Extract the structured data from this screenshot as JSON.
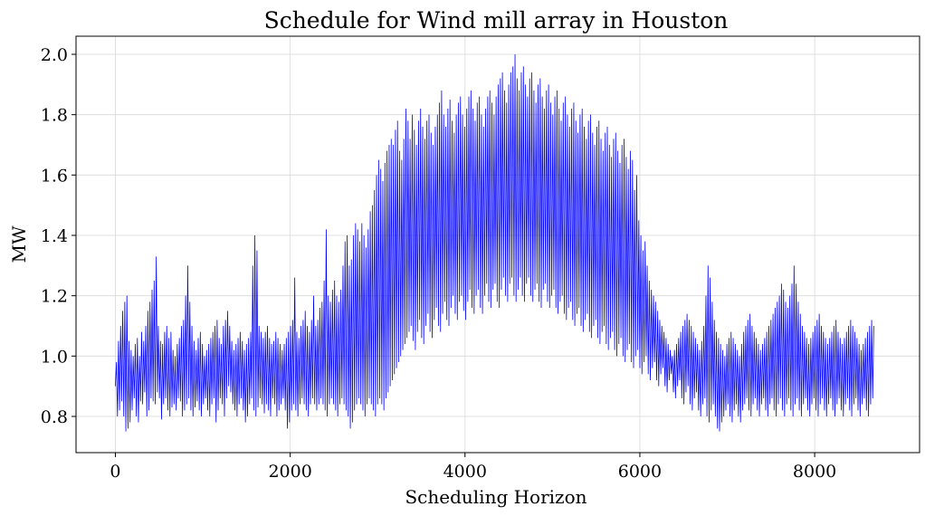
{
  "chart_data": {
    "type": "line",
    "title": "Schedule for Wind mill array in Houston",
    "xlabel": "Scheduling Horizon",
    "ylabel": "MW",
    "xlim": [
      -450,
      9200
    ],
    "ylim": [
      0.68,
      2.06
    ],
    "xticks": [
      0,
      2000,
      4000,
      6000,
      8000
    ],
    "xtick_labels": [
      "0",
      "2000",
      "4000",
      "6000",
      "8000"
    ],
    "yticks": [
      0.8,
      1.0,
      1.2,
      1.4,
      1.6,
      1.8,
      2.0
    ],
    "ytick_labels": [
      "0.8",
      "1.0",
      "1.2",
      "1.4",
      "1.6",
      "1.8",
      "2.0"
    ],
    "grid": true,
    "series": [
      {
        "color": "#0000ff",
        "x_start": 0,
        "x_step": 24,
        "lows": [
          0.9,
          0.8,
          0.82,
          0.85,
          0.8,
          0.75,
          0.76,
          0.78,
          0.82,
          0.86,
          0.8,
          0.78,
          0.85,
          0.84,
          0.88,
          0.8,
          0.82,
          0.86,
          0.85,
          0.84,
          0.88,
          0.86,
          0.79,
          0.84,
          0.86,
          0.82,
          0.8,
          0.83,
          0.84,
          0.82,
          0.86,
          0.85,
          0.8,
          0.82,
          0.84,
          0.86,
          0.82,
          0.8,
          0.83,
          0.85,
          0.82,
          0.8,
          0.84,
          0.86,
          0.82,
          0.8,
          0.84,
          0.86,
          0.78,
          0.82,
          0.86,
          0.84,
          0.8,
          0.86,
          0.9,
          0.88,
          0.84,
          0.82,
          0.8,
          0.84,
          0.86,
          0.82,
          0.78,
          0.8,
          0.84,
          0.86,
          0.82,
          0.8,
          0.83,
          0.86,
          0.84,
          0.81,
          0.84,
          0.82,
          0.8,
          0.86,
          0.84,
          0.8,
          0.82,
          0.84,
          0.86,
          0.82,
          0.76,
          0.78,
          0.82,
          0.84,
          0.82,
          0.8,
          0.84,
          0.86,
          0.84,
          0.82,
          0.8,
          0.84,
          0.86,
          0.84,
          0.82,
          0.84,
          0.86,
          0.84,
          0.82,
          0.8,
          0.84,
          0.86,
          0.84,
          0.82,
          0.8,
          0.84,
          0.86,
          0.84,
          0.82,
          0.8,
          0.76,
          0.78,
          0.82,
          0.84,
          0.86,
          0.84,
          0.82,
          0.8,
          0.84,
          0.86,
          0.84,
          0.82,
          0.8,
          0.84,
          0.86,
          0.84,
          0.82,
          0.86,
          0.88,
          0.9,
          0.92,
          0.94,
          0.96,
          0.98,
          1.0,
          1.02,
          1.04,
          1.06,
          1.08,
          1.1,
          1.05,
          1.02,
          1.08,
          1.12,
          1.06,
          1.04,
          1.1,
          1.14,
          1.08,
          1.06,
          1.12,
          1.16,
          1.1,
          1.08,
          1.14,
          1.18,
          1.12,
          1.1,
          1.16,
          1.2,
          1.14,
          1.12,
          1.18,
          1.2,
          1.15,
          1.12,
          1.18,
          1.22,
          1.16,
          1.14,
          1.2,
          1.22,
          1.16,
          1.14,
          1.2,
          1.24,
          1.18,
          1.16,
          1.22,
          1.24,
          1.18,
          1.16,
          1.22,
          1.26,
          1.2,
          1.18,
          1.24,
          1.26,
          1.2,
          1.18,
          1.22,
          1.26,
          1.2,
          1.18,
          1.24,
          1.26,
          1.2,
          1.18,
          1.22,
          1.24,
          1.18,
          1.16,
          1.22,
          1.24,
          1.18,
          1.16,
          1.2,
          1.22,
          1.16,
          1.14,
          1.18,
          1.2,
          1.14,
          1.12,
          1.16,
          1.18,
          1.12,
          1.1,
          1.14,
          1.16,
          1.1,
          1.08,
          1.12,
          1.14,
          1.08,
          1.06,
          1.1,
          1.12,
          1.06,
          1.04,
          1.08,
          1.1,
          1.04,
          1.02,
          1.06,
          1.08,
          1.02,
          1.0,
          1.04,
          1.06,
          1.0,
          0.98,
          1.02,
          1.04,
          0.98,
          0.96,
          1.0,
          1.02,
          0.96,
          0.94,
          0.98,
          1.0,
          0.94,
          0.92,
          0.96,
          0.98,
          0.92,
          0.9,
          0.94,
          0.96,
          0.9,
          0.88,
          0.92,
          0.94,
          0.88,
          0.86,
          0.9,
          0.92,
          0.86,
          0.84,
          0.88,
          0.9,
          0.84,
          0.82,
          0.86,
          0.88,
          0.82,
          0.8,
          0.84,
          0.86,
          0.8,
          0.78,
          0.82,
          0.84,
          0.8,
          0.76,
          0.75,
          0.78,
          0.8,
          0.82,
          0.84,
          0.8,
          0.78,
          0.82,
          0.84,
          0.8,
          0.78,
          0.82,
          0.84,
          0.86,
          0.82,
          0.8,
          0.84,
          0.86,
          0.82,
          0.8,
          0.84,
          0.86,
          0.82,
          0.8,
          0.84,
          0.86,
          0.82,
          0.8,
          0.84,
          0.86,
          0.82,
          0.8,
          0.84,
          0.86,
          0.82,
          0.8,
          0.84,
          0.86,
          0.82,
          0.8,
          0.84,
          0.86,
          0.82,
          0.8,
          0.84,
          0.86,
          0.82,
          0.8,
          0.84,
          0.86,
          0.82,
          0.8,
          0.84,
          0.86,
          0.82,
          0.8,
          0.84,
          0.86,
          0.82,
          0.8,
          0.84,
          0.86,
          0.82,
          0.8,
          0.84,
          0.86,
          0.82,
          0.8,
          0.84,
          0.86,
          0.82,
          0.8,
          0.84,
          0.86,
          0.82,
          0.8
        ],
        "highs": [
          0.98,
          1.05,
          1.1,
          1.15,
          1.18,
          1.2,
          1.05,
          1.02,
          1.0,
          1.04,
          1.06,
          1.0,
          1.08,
          1.05,
          1.1,
          1.15,
          1.18,
          1.22,
          1.25,
          1.33,
          1.1,
          1.05,
          1.04,
          1.08,
          1.1,
          1.06,
          1.08,
          1.02,
          1.0,
          1.04,
          1.06,
          1.1,
          1.12,
          1.2,
          1.3,
          1.18,
          1.1,
          1.05,
          1.02,
          1.06,
          1.08,
          1.04,
          1.0,
          1.02,
          1.04,
          1.06,
          1.08,
          1.1,
          1.12,
          1.06,
          1.04,
          1.1,
          1.12,
          1.15,
          1.1,
          1.05,
          1.02,
          1.04,
          1.06,
          1.08,
          1.05,
          1.02,
          1.04,
          1.06,
          1.08,
          1.3,
          1.4,
          1.35,
          1.1,
          1.08,
          1.06,
          1.08,
          1.1,
          1.06,
          1.04,
          1.05,
          1.08,
          1.06,
          1.04,
          1.02,
          1.04,
          1.06,
          1.08,
          1.1,
          1.12,
          1.26,
          1.08,
          1.06,
          1.1,
          1.12,
          1.15,
          1.1,
          1.08,
          1.12,
          1.2,
          1.1,
          1.12,
          1.16,
          1.18,
          1.25,
          1.42,
          1.2,
          1.18,
          1.22,
          1.25,
          1.2,
          1.18,
          1.22,
          1.3,
          1.38,
          1.4,
          1.3,
          1.32,
          1.4,
          1.44,
          1.42,
          1.38,
          1.44,
          1.4,
          1.36,
          1.42,
          1.48,
          1.5,
          1.55,
          1.6,
          1.65,
          1.62,
          1.58,
          1.64,
          1.68,
          1.7,
          1.72,
          1.7,
          1.75,
          1.78,
          1.68,
          1.65,
          1.72,
          1.82,
          1.78,
          1.72,
          1.8,
          1.75,
          1.7,
          1.78,
          1.82,
          1.76,
          1.72,
          1.78,
          1.8,
          1.74,
          1.7,
          1.76,
          1.8,
          1.84,
          1.88,
          1.8,
          1.76,
          1.82,
          1.85,
          1.78,
          1.74,
          1.8,
          1.84,
          1.86,
          1.8,
          1.76,
          1.82,
          1.86,
          1.88,
          1.82,
          1.78,
          1.84,
          1.86,
          1.8,
          1.76,
          1.82,
          1.86,
          1.88,
          1.84,
          1.8,
          1.86,
          1.9,
          1.92,
          1.94,
          1.88,
          1.84,
          1.9,
          1.94,
          1.96,
          2.0,
          1.92,
          1.88,
          1.94,
          1.96,
          1.9,
          1.86,
          1.92,
          1.94,
          1.88,
          1.84,
          1.9,
          1.92,
          1.86,
          1.82,
          1.88,
          1.9,
          1.84,
          1.8,
          1.86,
          1.88,
          1.82,
          1.78,
          1.84,
          1.86,
          1.8,
          1.76,
          1.82,
          1.84,
          1.78,
          1.74,
          1.8,
          1.82,
          1.76,
          1.72,
          1.78,
          1.8,
          1.74,
          1.7,
          1.76,
          1.78,
          1.72,
          1.68,
          1.74,
          1.76,
          1.7,
          1.66,
          1.72,
          1.74,
          1.68,
          1.64,
          1.7,
          1.72,
          1.66,
          1.62,
          1.68,
          1.65,
          1.55,
          1.6,
          1.45,
          1.4,
          1.35,
          1.38,
          1.3,
          1.25,
          1.22,
          1.2,
          1.18,
          1.15,
          1.12,
          1.1,
          1.08,
          1.06,
          1.04,
          1.02,
          1.0,
          1.02,
          1.04,
          1.06,
          1.08,
          1.1,
          1.12,
          1.14,
          1.12,
          1.1,
          1.08,
          1.06,
          1.04,
          1.02,
          1.05,
          1.1,
          1.2,
          1.3,
          1.26,
          1.18,
          1.12,
          1.08,
          1.06,
          1.04,
          1.02,
          1.0,
          1.04,
          1.06,
          1.08,
          1.06,
          1.04,
          1.02,
          1.0,
          1.04,
          1.08,
          1.1,
          1.12,
          1.14,
          1.1,
          1.08,
          1.06,
          1.04,
          1.02,
          1.04,
          1.06,
          1.08,
          1.1,
          1.12,
          1.14,
          1.16,
          1.18,
          1.2,
          1.24,
          1.22,
          1.18,
          1.16,
          1.2,
          1.24,
          1.3,
          1.24,
          1.18,
          1.14,
          1.1,
          1.08,
          1.06,
          1.04,
          1.06,
          1.08,
          1.1,
          1.12,
          1.14,
          1.1,
          1.08,
          1.06,
          1.04,
          1.06,
          1.08,
          1.1,
          1.12,
          1.08,
          1.06,
          1.04,
          1.06,
          1.08,
          1.1,
          1.12,
          1.1,
          1.08,
          1.06,
          1.04,
          1.02,
          1.04,
          1.06,
          1.08,
          1.1,
          1.12,
          1.1
        ]
      }
    ]
  }
}
